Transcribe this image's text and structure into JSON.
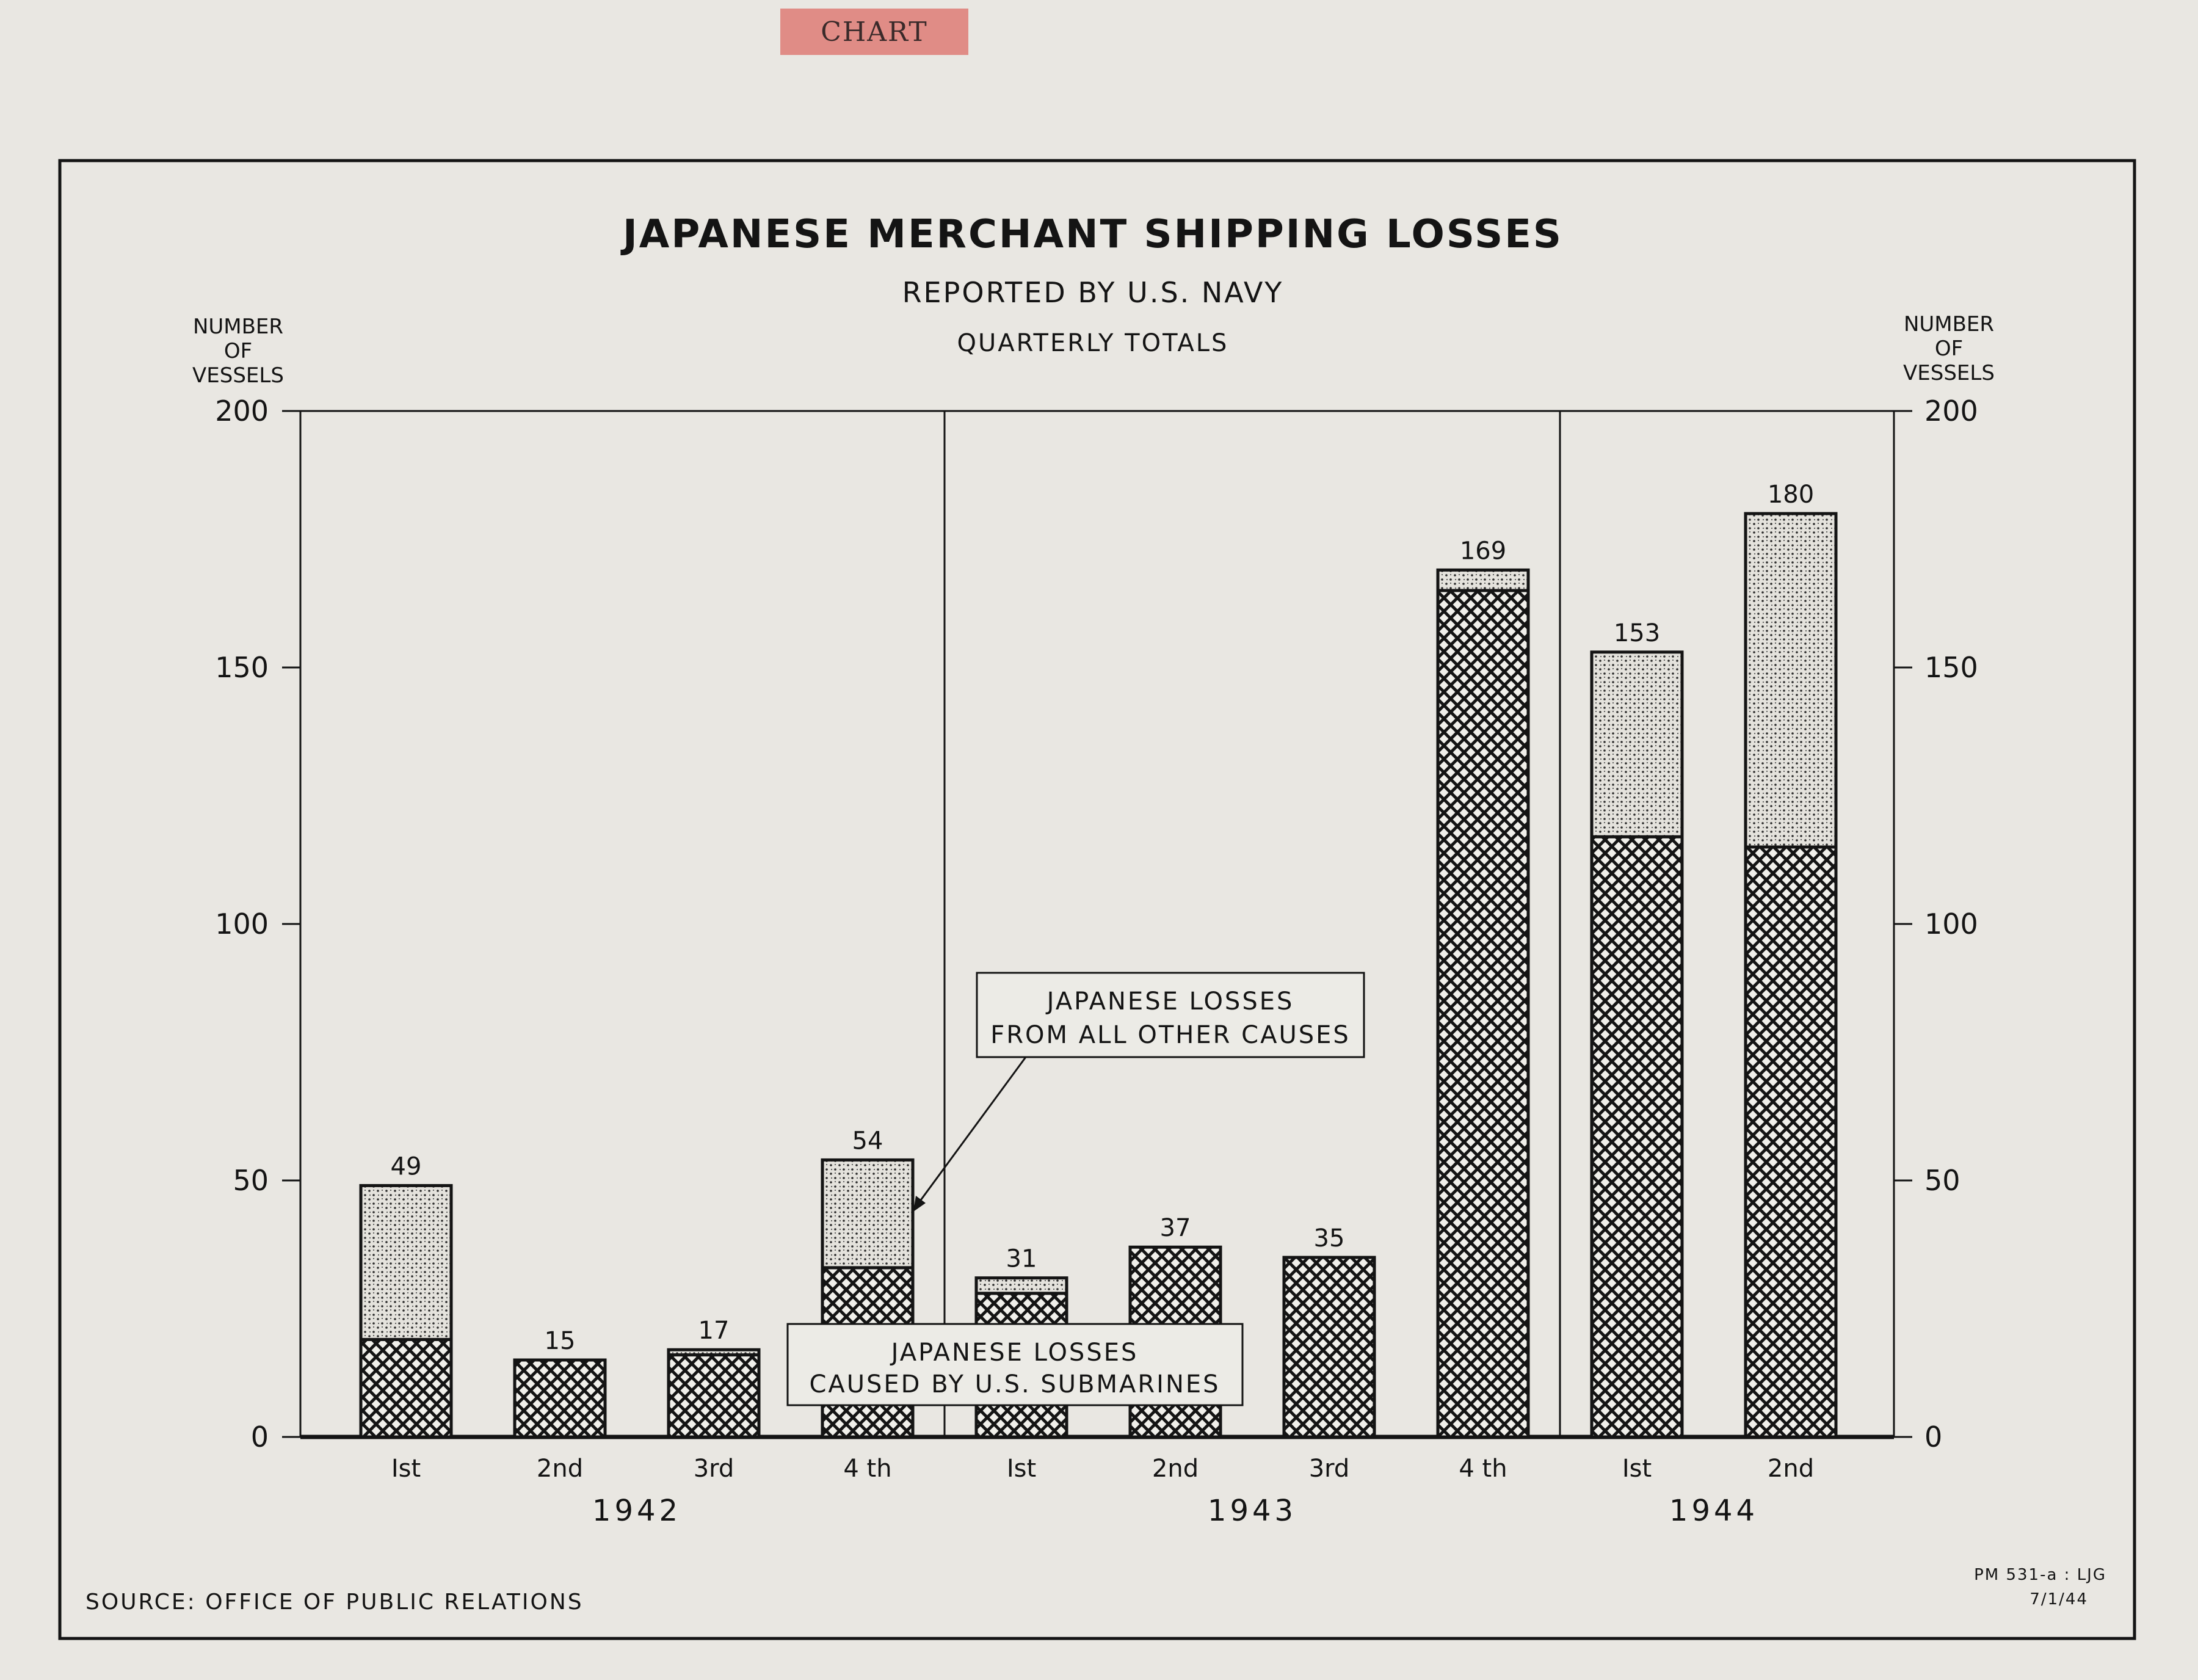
{
  "stamp": "CHART",
  "footer": {
    "source": "SOURCE:  OFFICE OF PUBLIC RELATIONS",
    "code_line1": "PM 531-a : LJG",
    "code_line2": "7/1/44"
  },
  "callouts": {
    "other_causes": [
      "JAPANESE  LOSSES",
      "FROM ALL OTHER CAUSES"
    ],
    "submarines": [
      "JAPANESE  LOSSES",
      "CAUSED BY U.S. SUBMARINES"
    ]
  },
  "colors": {
    "ink": "#141414",
    "paper": "#e9e7e2",
    "stamp": "#e08c86"
  },
  "chart_data": {
    "type": "bar",
    "stacked": true,
    "title": "JAPANESE  MERCHANT  SHIPPING  LOSSES",
    "subtitle": "REPORTED  BY  U.S.  NAVY",
    "subtitle2": "QUARTERLY  TOTALS",
    "ylabel": [
      "NUMBER",
      "OF",
      "VESSELS"
    ],
    "ylim": [
      0,
      200
    ],
    "yticks": [
      0,
      50,
      100,
      150,
      200
    ],
    "ytick_labels": [
      "0",
      "50",
      "100",
      "150",
      "200"
    ],
    "categories": [
      "Ist",
      "2nd",
      "3rd",
      "4 th",
      "Ist",
      "2nd",
      "3rd",
      "4 th",
      "Ist",
      "2nd"
    ],
    "groups": [
      {
        "label": "1942",
        "count": 4
      },
      {
        "label": "1943",
        "count": 4
      },
      {
        "label": "1944",
        "count": 2
      }
    ],
    "series": [
      {
        "name": "JAPANESE LOSSES CAUSED BY U.S. SUBMARINES",
        "pattern": "crosshatch",
        "values": [
          19,
          15,
          16,
          33,
          28,
          37,
          35,
          165,
          117,
          115
        ]
      },
      {
        "name": "JAPANESE LOSSES FROM ALL OTHER CAUSES",
        "pattern": "stipple",
        "values": [
          30,
          0,
          1,
          21,
          3,
          0,
          0,
          4,
          36,
          65
        ]
      }
    ],
    "totals": [
      49,
      15,
      17,
      54,
      31,
      37,
      35,
      169,
      153,
      180
    ],
    "total_labels": [
      "49",
      "15",
      "17",
      "54",
      "31",
      "37",
      "35",
      "169",
      "153",
      "180"
    ],
    "legend": "callout boxes inside plot",
    "grid": false
  }
}
